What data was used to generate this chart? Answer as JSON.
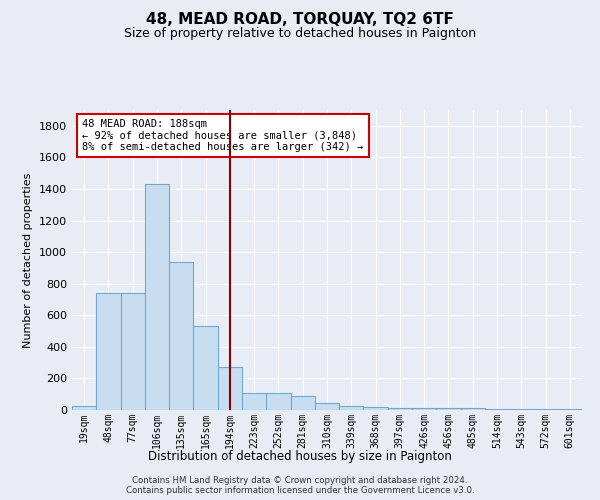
{
  "title": "48, MEAD ROAD, TORQUAY, TQ2 6TF",
  "subtitle": "Size of property relative to detached houses in Paignton",
  "xlabel": "Distribution of detached houses by size in Paignton",
  "ylabel": "Number of detached properties",
  "bin_labels": [
    "19sqm",
    "48sqm",
    "77sqm",
    "106sqm",
    "135sqm",
    "165sqm",
    "194sqm",
    "223sqm",
    "252sqm",
    "281sqm",
    "310sqm",
    "339sqm",
    "368sqm",
    "397sqm",
    "426sqm",
    "456sqm",
    "485sqm",
    "514sqm",
    "543sqm",
    "572sqm",
    "601sqm"
  ],
  "bar_heights": [
    25,
    740,
    740,
    1430,
    935,
    530,
    270,
    110,
    110,
    90,
    45,
    25,
    20,
    15,
    10,
    10,
    10,
    8,
    8,
    8,
    8
  ],
  "bar_color": "#c9ddf0",
  "bar_edge_color": "#6aaad4",
  "background_color": "#e8edf5",
  "vline_x": 6.0,
  "vline_color": "#8b0000",
  "annotation_text": "48 MEAD ROAD: 188sqm\n← 92% of detached houses are smaller (3,848)\n8% of semi-detached houses are larger (342) →",
  "annotation_box_color": "#ffffff",
  "annotation_box_edge_color": "#cc0000",
  "footnote": "Contains HM Land Registry data © Crown copyright and database right 2024.\nContains public sector information licensed under the Government Licence v3.0.",
  "ylim": [
    0,
    1900
  ],
  "yticks": [
    0,
    200,
    400,
    600,
    800,
    1000,
    1200,
    1400,
    1600,
    1800
  ],
  "title_fontsize": 11,
  "subtitle_fontsize": 9
}
